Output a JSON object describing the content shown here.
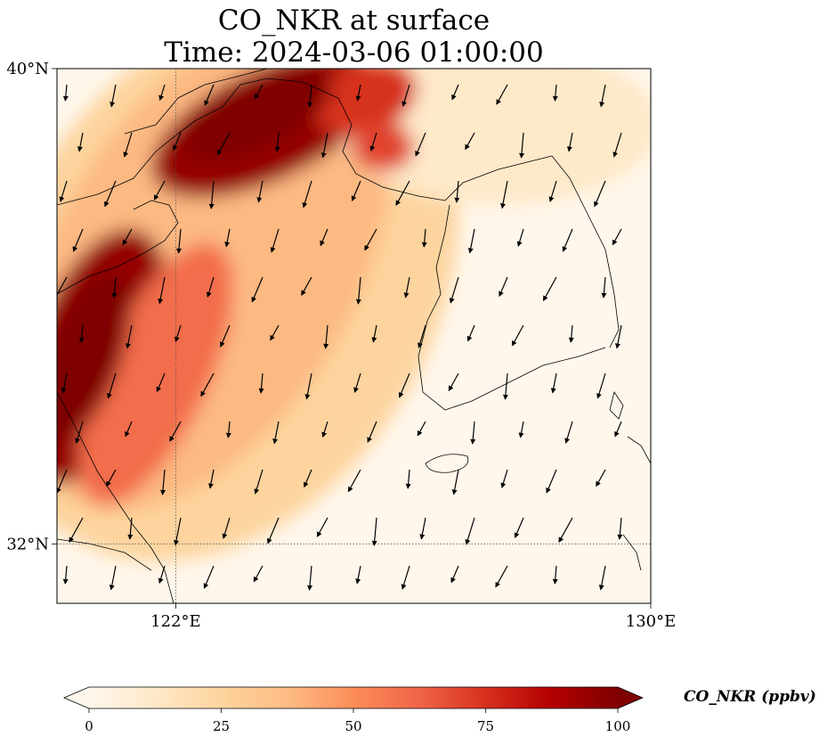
{
  "title": {
    "line1": "CO_NKR at surface",
    "line2": "Time: 2024-03-06 01:00:00"
  },
  "map": {
    "lon_range": [
      120,
      130
    ],
    "lat_range": [
      31,
      40
    ],
    "gridlines": {
      "lon": [
        122
      ],
      "lat": [
        32
      ]
    },
    "x_ticks": [
      {
        "value": 122,
        "label": "122°E"
      },
      {
        "value": 130,
        "label": "130°E"
      }
    ],
    "y_ticks": [
      {
        "value": 40,
        "label": "40°N"
      },
      {
        "value": 32,
        "label": "32°N"
      }
    ],
    "field_description": "CO concentration plume: high values (>75 ppbv) over Bohai Bay and Shandong peninsula coast, decreasing southeastward to near 0 over Korea and the Yellow Sea; winds predominantly from the north-northeast"
  },
  "colorbar": {
    "label": "CO_NKR (ppbv)",
    "min": 0,
    "max": 100,
    "ticks": [
      0,
      25,
      50,
      75,
      100
    ],
    "colormap": "OrRd",
    "extend": "both",
    "colors": [
      "#fff7ec",
      "#fee8c8",
      "#fdd49e",
      "#fdbb84",
      "#fc8d59",
      "#ef6548",
      "#d7301f",
      "#b30000",
      "#7f0000"
    ]
  },
  "colors": {
    "coastline": "#000000",
    "gridline": "#555555",
    "arrow": "#000000"
  }
}
